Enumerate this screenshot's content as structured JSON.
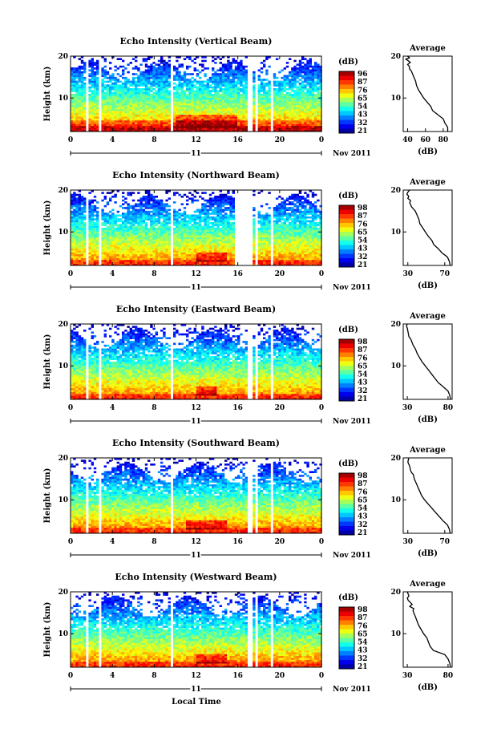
{
  "figure": {
    "height_label": "Height (km)",
    "avg_title": "Average",
    "avg_xlabel": "(dB)",
    "cbar_label": "(dB)",
    "date_label": "Nov 2011",
    "day_label": "11",
    "local_time_label": "Local Time",
    "time_ticks": [
      "0",
      "4",
      "8",
      "12",
      "16",
      "20",
      "0"
    ],
    "height_ticks": [
      "10",
      "20"
    ]
  },
  "panels": [
    {
      "title": "Echo Intensity (Vertical Beam)",
      "cbar_ticks": [
        "96",
        "87",
        "76",
        "65",
        "54",
        "43",
        "32",
        "21"
      ],
      "avg_ticks": [
        "40",
        "60",
        "80"
      ]
    },
    {
      "title": "Echo Intensity (Northward Beam)",
      "cbar_ticks": [
        "98",
        "87",
        "76",
        "65",
        "54",
        "43",
        "32",
        "21"
      ],
      "avg_ticks": [
        "30",
        "70"
      ]
    },
    {
      "title": "Echo Intensity (Eastward Beam)",
      "cbar_ticks": [
        "98",
        "87",
        "76",
        "65",
        "54",
        "43",
        "32",
        "21"
      ],
      "avg_ticks": [
        "30",
        "80"
      ]
    },
    {
      "title": "Echo Intensity (Southward Beam)",
      "cbar_ticks": [
        "98",
        "87",
        "76",
        "65",
        "54",
        "43",
        "32",
        "21"
      ],
      "avg_ticks": [
        "30",
        "70"
      ]
    },
    {
      "title": "Echo Intensity (Westward Beam)",
      "cbar_ticks": [
        "98",
        "87",
        "76",
        "65",
        "54",
        "43",
        "32",
        "21"
      ],
      "avg_ticks": [
        "30",
        "80"
      ]
    }
  ],
  "chart_data": [
    {
      "type": "heatmap",
      "title": "Echo Intensity (Vertical Beam)",
      "xlabel": "Local Time",
      "ylabel": "Height (km)",
      "xlim": [
        0,
        24
      ],
      "ylim": [
        2,
        20
      ],
      "colorbar_label": "(dB)",
      "colorbar_range": [
        21,
        96
      ],
      "colormap": "jet",
      "data_gaps_hours": [
        [
          1.5,
          1.8
        ],
        [
          2.6,
          3.0
        ],
        [
          9.6,
          9.8
        ],
        [
          17.0,
          17.3
        ],
        [
          17.7,
          18.0
        ],
        [
          19.1,
          19.4
        ]
      ],
      "peak_region": {
        "time_hours": [
          10,
          16
        ],
        "height_km": [
          3,
          6
        ]
      }
    },
    {
      "type": "heatmap",
      "title": "Echo Intensity (Northward Beam)",
      "xlabel": "Local Time",
      "ylabel": "Height (km)",
      "xlim": [
        0,
        24
      ],
      "ylim": [
        2,
        20
      ],
      "colorbar_label": "(dB)",
      "colorbar_range": [
        21,
        98
      ],
      "colormap": "jet",
      "data_gaps_hours": [
        [
          1.5,
          1.8
        ],
        [
          2.6,
          3.0
        ],
        [
          9.6,
          9.8
        ],
        [
          15.7,
          17.3
        ],
        [
          17.7,
          18.0
        ],
        [
          19.1,
          19.4
        ]
      ],
      "peak_region": {
        "time_hours": [
          12,
          15
        ],
        "height_km": [
          3,
          5
        ]
      }
    },
    {
      "type": "heatmap",
      "title": "Echo Intensity (Eastward Beam)",
      "xlabel": "Local Time",
      "ylabel": "Height (km)",
      "xlim": [
        0,
        24
      ],
      "ylim": [
        2,
        20
      ],
      "colorbar_label": "(dB)",
      "colorbar_range": [
        21,
        98
      ],
      "colormap": "jet",
      "data_gaps_hours": [
        [
          1.5,
          1.8
        ],
        [
          2.6,
          3.0
        ],
        [
          9.6,
          9.8
        ],
        [
          17.0,
          17.3
        ],
        [
          17.7,
          18.0
        ],
        [
          19.1,
          19.4
        ]
      ],
      "peak_region": {
        "time_hours": [
          12,
          14
        ],
        "height_km": [
          3,
          5
        ]
      }
    },
    {
      "type": "heatmap",
      "title": "Echo Intensity (Southward Beam)",
      "xlabel": "Local Time",
      "ylabel": "Height (km)",
      "xlim": [
        0,
        24
      ],
      "ylim": [
        2,
        20
      ],
      "colorbar_label": "(dB)",
      "colorbar_range": [
        21,
        98
      ],
      "colormap": "jet",
      "data_gaps_hours": [
        [
          1.5,
          1.8
        ],
        [
          2.6,
          3.0
        ],
        [
          9.6,
          9.8
        ],
        [
          17.0,
          17.3
        ],
        [
          17.7,
          18.0
        ],
        [
          19.1,
          19.4
        ]
      ],
      "peak_region": {
        "time_hours": [
          11,
          15
        ],
        "height_km": [
          3,
          5
        ]
      }
    },
    {
      "type": "heatmap",
      "title": "Echo Intensity (Westward Beam)",
      "xlabel": "Local Time",
      "ylabel": "Height (km)",
      "xlim": [
        0,
        24
      ],
      "ylim": [
        2,
        20
      ],
      "colorbar_label": "(dB)",
      "colorbar_range": [
        21,
        98
      ],
      "colormap": "jet",
      "data_gaps_hours": [
        [
          1.5,
          1.8
        ],
        [
          2.6,
          3.0
        ],
        [
          9.6,
          9.8
        ],
        [
          17.0,
          17.3
        ],
        [
          17.7,
          18.0
        ],
        [
          19.1,
          19.4
        ]
      ],
      "peak_region": {
        "time_hours": [
          12,
          15
        ],
        "height_km": [
          3,
          5
        ]
      }
    },
    {
      "type": "line",
      "title": "Average",
      "panel": "Vertical Beam",
      "xlabel": "(dB)",
      "ylabel": "Height (km)",
      "xlim": [
        35,
        90
      ],
      "ylim": [
        2,
        20
      ],
      "series": [
        {
          "x": [
            85,
            85,
            82,
            80,
            74,
            68,
            66,
            62,
            58,
            55,
            52,
            50,
            49,
            47,
            45,
            44,
            42,
            42,
            40,
            43,
            40,
            38,
            42,
            40
          ],
          "y": [
            2,
            3,
            4,
            5,
            6,
            7,
            8,
            9,
            10,
            11,
            12,
            13,
            14,
            15,
            16,
            16.5,
            17,
            17.5,
            18,
            18.5,
            19,
            19.3,
            19.6,
            20
          ]
        }
      ]
    },
    {
      "type": "line",
      "title": "Average",
      "panel": "Northward Beam",
      "xlabel": "(dB)",
      "ylabel": "Height (km)",
      "xlim": [
        25,
        78
      ],
      "ylim": [
        2,
        20
      ],
      "series": [
        {
          "x": [
            76,
            75,
            73,
            67,
            63,
            58,
            56,
            52,
            49,
            46,
            43,
            42,
            40,
            38,
            36,
            34,
            32,
            33,
            30,
            31,
            29,
            30,
            32
          ],
          "y": [
            2,
            3,
            4,
            5,
            6,
            7,
            8,
            9,
            10,
            11,
            12,
            13,
            14,
            15,
            15.5,
            16,
            17,
            17.5,
            18,
            18.5,
            19,
            19.5,
            20
          ]
        }
      ]
    },
    {
      "type": "line",
      "title": "Average",
      "panel": "Eastward Beam",
      "xlabel": "(dB)",
      "ylabel": "Height (km)",
      "xlim": [
        25,
        85
      ],
      "ylim": [
        2,
        20
      ],
      "series": [
        {
          "x": [
            83,
            82,
            80,
            74,
            68,
            64,
            60,
            56,
            52,
            48,
            45,
            42,
            40,
            37,
            35,
            34,
            32,
            31,
            30,
            29,
            30
          ],
          "y": [
            2,
            3,
            4,
            5,
            6,
            7,
            8,
            9,
            10,
            11,
            12,
            13,
            14,
            15,
            16,
            16.5,
            17,
            18,
            19,
            19.5,
            20
          ]
        }
      ]
    },
    {
      "type": "line",
      "title": "Average",
      "panel": "Southward Beam",
      "xlabel": "(dB)",
      "ylabel": "Height (km)",
      "xlim": [
        25,
        78
      ],
      "ylim": [
        2,
        20
      ],
      "series": [
        {
          "x": [
            76,
            75,
            73,
            68,
            64,
            60,
            56,
            52,
            48,
            45,
            43,
            41,
            39,
            37,
            36,
            34,
            33,
            32,
            31,
            30,
            31
          ],
          "y": [
            2,
            3,
            4,
            5,
            6,
            7,
            8,
            9,
            10,
            11,
            12,
            13,
            14,
            15,
            16,
            16.5,
            17,
            18,
            18.5,
            19,
            20
          ]
        }
      ]
    },
    {
      "type": "line",
      "title": "Average",
      "panel": "Westward Beam",
      "xlabel": "(dB)",
      "ylabel": "Height (km)",
      "xlim": [
        25,
        85
      ],
      "ylim": [
        2,
        20
      ],
      "series": [
        {
          "x": [
            83,
            82,
            80,
            76,
            62,
            58,
            56,
            54,
            50,
            47,
            44,
            42,
            40,
            38,
            37,
            38,
            33,
            36,
            31,
            30,
            32,
            30
          ],
          "y": [
            2,
            3,
            4,
            5,
            6,
            7,
            8,
            9,
            10,
            11,
            12,
            13,
            14,
            15,
            15.5,
            16,
            16.5,
            17,
            18,
            18.5,
            19,
            20
          ]
        }
      ]
    }
  ]
}
